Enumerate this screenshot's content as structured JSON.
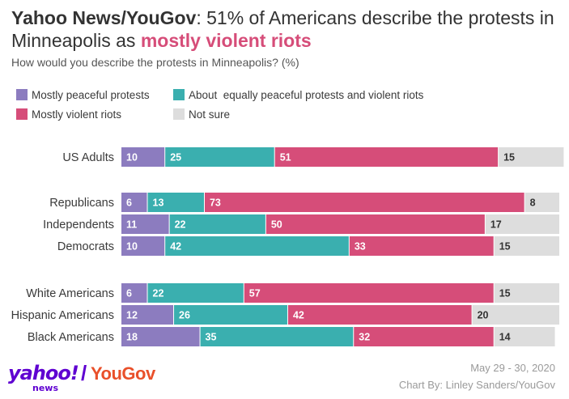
{
  "title": {
    "brand": "Yahoo News/YouGov",
    "rest": ": 51% of Americans describe the protests in Minneapolis as ",
    "highlight": "mostly violent riots"
  },
  "subtitle": "How would you describe the protests in Minneapolis? (%)",
  "legend": [
    {
      "label": "Mostly peaceful protests",
      "color": "#8c7cbf"
    },
    {
      "label": "About  equally peaceful protests and violent riots",
      "color": "#3aafaf"
    },
    {
      "label": "Mostly violent riots",
      "color": "#d64d79"
    },
    {
      "label": "Not sure",
      "color": "#dddddd"
    }
  ],
  "chart_data": {
    "type": "bar",
    "orientation": "horizontal",
    "stacked": true,
    "unit": "%",
    "categories": [
      "US Adults",
      "Republicans",
      "Independents",
      "Democrats",
      "White Americans",
      "Hispanic Americans",
      "Black Americans"
    ],
    "groups": [
      [
        "US Adults"
      ],
      [
        "Republicans",
        "Independents",
        "Democrats"
      ],
      [
        "White Americans",
        "Hispanic Americans",
        "Black Americans"
      ]
    ],
    "series": [
      {
        "name": "Mostly peaceful protests",
        "color": "#8c7cbf",
        "values": [
          10,
          6,
          11,
          10,
          6,
          12,
          18
        ]
      },
      {
        "name": "About  equally peaceful protests and violent riots",
        "color": "#3aafaf",
        "values": [
          25,
          13,
          22,
          42,
          22,
          26,
          35
        ]
      },
      {
        "name": "Mostly violent riots",
        "color": "#d64d79",
        "values": [
          51,
          73,
          50,
          33,
          57,
          42,
          32
        ]
      },
      {
        "name": "Not sure",
        "color": "#dddddd",
        "values": [
          15,
          8,
          17,
          15,
          15,
          20,
          14
        ]
      }
    ],
    "legend_position": "top",
    "grid": false
  },
  "footer": {
    "date": "May 29 - 30, 2020",
    "credit": "Chart By: Linley Sanders/YouGov"
  },
  "logo": {
    "yahoo": "yahoo!",
    "news": "news",
    "slash": "/",
    "yougov": "YouGov"
  }
}
